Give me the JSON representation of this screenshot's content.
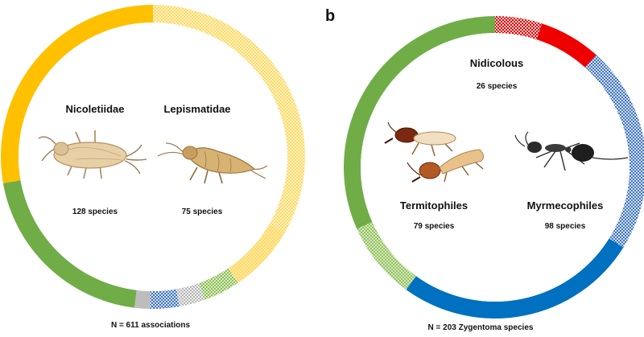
{
  "panel_a": {
    "family_1": {
      "name": "Nicoletiidae",
      "count": "128 species"
    },
    "family_2": {
      "name": "Lepismatidae",
      "count": "75 species"
    },
    "footer": "N = 611 associations",
    "segments": [
      {
        "start": 0,
        "end": 120,
        "color": "#ffd966",
        "pattern": "checker",
        "pattern_color": "#fff3c4"
      },
      {
        "start": 120,
        "end": 146,
        "color": "#ffd966",
        "pattern": "checker",
        "pattern_color": "#ffe9a0"
      },
      {
        "start": 146,
        "end": 160,
        "color": "#8fbf5a",
        "pattern": "checker",
        "pattern_color": "#d9ecc4"
      },
      {
        "start": 160,
        "end": 170,
        "color": "#b8b8b8",
        "pattern": "checker",
        "pattern_color": "#eeeeee"
      },
      {
        "start": 170,
        "end": 181,
        "color": "#3a6fc4",
        "pattern": "checker",
        "pattern_color": "#dbe6f7"
      },
      {
        "start": 181,
        "end": 187,
        "color": "#bdbdbd",
        "pattern": "none"
      },
      {
        "start": 187,
        "end": 260,
        "color": "#70ad47",
        "pattern": "none"
      },
      {
        "start": 260,
        "end": 360,
        "color": "#ffc000",
        "pattern": "none"
      }
    ]
  },
  "panel_b": {
    "label": "b",
    "group_1": {
      "name": "Nidicolous",
      "count": "26 species"
    },
    "group_2": {
      "name": "Termitophiles",
      "count": "79 species"
    },
    "group_3": {
      "name": "Myrmecophiles",
      "count": "98 species"
    },
    "footer": "N = 203 Zygentoma species",
    "segments": [
      {
        "start": 0,
        "end": 18,
        "color": "#e00000",
        "pattern": "checker",
        "pattern_color": "#ffd0d0"
      },
      {
        "start": 18,
        "end": 42,
        "color": "#ee0000",
        "pattern": "none"
      },
      {
        "start": 42,
        "end": 122,
        "color": "#3a6fc4",
        "pattern": "checker",
        "pattern_color": "#dbe6f7"
      },
      {
        "start": 122,
        "end": 216,
        "color": "#0070c0",
        "pattern": "none"
      },
      {
        "start": 216,
        "end": 246,
        "color": "#8fbf5a",
        "pattern": "checker",
        "pattern_color": "#d9ecc4"
      },
      {
        "start": 246,
        "end": 360,
        "color": "#70ad47",
        "pattern": "none"
      }
    ]
  }
}
